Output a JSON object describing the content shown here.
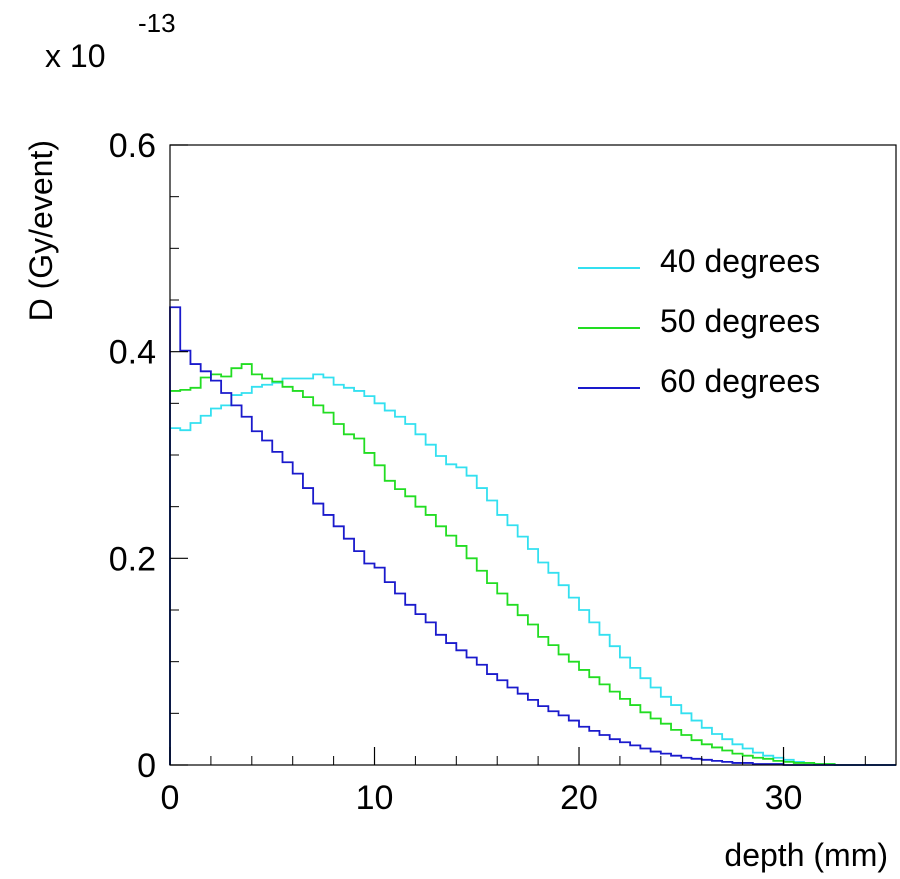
{
  "chart_data": {
    "type": "line",
    "title": "",
    "xlabel": "depth (mm)",
    "ylabel": "D (Gy/event)",
    "y_multiplier_base": "x 10",
    "y_multiplier_exponent": "-13",
    "xlim": [
      0,
      35.5
    ],
    "ylim": [
      0,
      0.6
    ],
    "x_ticks": [
      0,
      10,
      20,
      30
    ],
    "x_tick_labels": [
      "0",
      "10",
      "20",
      "30"
    ],
    "y_ticks": [
      0,
      0.2,
      0.4,
      0.6
    ],
    "y_tick_labels": [
      "0",
      "0.2",
      "0.4",
      "0.6"
    ],
    "grid": false,
    "legend_position": "top-right",
    "bin_width": 0.5,
    "x": [
      0.0,
      0.5,
      1.0,
      1.5,
      2.0,
      2.5,
      3.0,
      3.5,
      4.0,
      4.5,
      5.0,
      5.5,
      6.0,
      6.5,
      7.0,
      7.5,
      8.0,
      8.5,
      9.0,
      9.5,
      10.0,
      10.5,
      11.0,
      11.5,
      12.0,
      12.5,
      13.0,
      13.5,
      14.0,
      14.5,
      15.0,
      15.5,
      16.0,
      16.5,
      17.0,
      17.5,
      18.0,
      18.5,
      19.0,
      19.5,
      20.0,
      20.5,
      21.0,
      21.5,
      22.0,
      22.5,
      23.0,
      23.5,
      24.0,
      24.5,
      25.0,
      25.5,
      26.0,
      26.5,
      27.0,
      27.5,
      28.0,
      28.5,
      29.0,
      29.5,
      30.0,
      30.5,
      31.0,
      31.5,
      32.0,
      32.5,
      33.0,
      33.5,
      34.0,
      34.5,
      35.0
    ],
    "series": [
      {
        "name": "40 degrees",
        "color": "#33e0f0",
        "values": [
          0.326,
          0.324,
          0.331,
          0.338,
          0.345,
          0.348,
          0.358,
          0.36,
          0.366,
          0.368,
          0.37,
          0.374,
          0.374,
          0.374,
          0.378,
          0.375,
          0.368,
          0.365,
          0.362,
          0.357,
          0.35,
          0.343,
          0.337,
          0.33,
          0.32,
          0.31,
          0.299,
          0.291,
          0.288,
          0.28,
          0.268,
          0.256,
          0.242,
          0.232,
          0.221,
          0.209,
          0.196,
          0.186,
          0.174,
          0.162,
          0.15,
          0.138,
          0.126,
          0.115,
          0.104,
          0.094,
          0.084,
          0.075,
          0.066,
          0.058,
          0.05,
          0.043,
          0.036,
          0.03,
          0.025,
          0.02,
          0.016,
          0.012,
          0.009,
          0.007,
          0.005,
          0.003,
          0.002,
          0.001,
          0.001,
          0.0,
          0.0,
          0.0,
          0.0,
          0.0,
          0.0
        ]
      },
      {
        "name": "50 degrees",
        "color": "#22dd22",
        "values": [
          0.362,
          0.363,
          0.365,
          0.375,
          0.378,
          0.376,
          0.384,
          0.388,
          0.378,
          0.374,
          0.371,
          0.366,
          0.362,
          0.356,
          0.348,
          0.341,
          0.33,
          0.32,
          0.316,
          0.302,
          0.29,
          0.275,
          0.267,
          0.26,
          0.25,
          0.242,
          0.231,
          0.222,
          0.212,
          0.2,
          0.188,
          0.176,
          0.166,
          0.155,
          0.145,
          0.136,
          0.124,
          0.116,
          0.107,
          0.1,
          0.092,
          0.085,
          0.078,
          0.071,
          0.064,
          0.058,
          0.051,
          0.045,
          0.04,
          0.034,
          0.029,
          0.024,
          0.02,
          0.017,
          0.014,
          0.011,
          0.009,
          0.007,
          0.006,
          0.004,
          0.003,
          0.002,
          0.002,
          0.001,
          0.001,
          0.0,
          0.0,
          0.0,
          0.0,
          0.0,
          0.0
        ]
      },
      {
        "name": "60 degrees",
        "color": "#1a1acc",
        "values": [
          0.443,
          0.401,
          0.388,
          0.381,
          0.372,
          0.36,
          0.348,
          0.337,
          0.323,
          0.314,
          0.303,
          0.293,
          0.282,
          0.268,
          0.253,
          0.242,
          0.231,
          0.219,
          0.207,
          0.195,
          0.191,
          0.177,
          0.166,
          0.155,
          0.146,
          0.138,
          0.126,
          0.118,
          0.111,
          0.104,
          0.097,
          0.088,
          0.082,
          0.075,
          0.069,
          0.063,
          0.057,
          0.052,
          0.048,
          0.043,
          0.037,
          0.033,
          0.029,
          0.025,
          0.022,
          0.019,
          0.016,
          0.013,
          0.011,
          0.009,
          0.007,
          0.006,
          0.005,
          0.004,
          0.003,
          0.002,
          0.002,
          0.001,
          0.001,
          0.001,
          0.0,
          0.0,
          0.0,
          0.0,
          0.0,
          0.0,
          0.0,
          0.0,
          0.0,
          0.0,
          0.0
        ]
      }
    ]
  }
}
